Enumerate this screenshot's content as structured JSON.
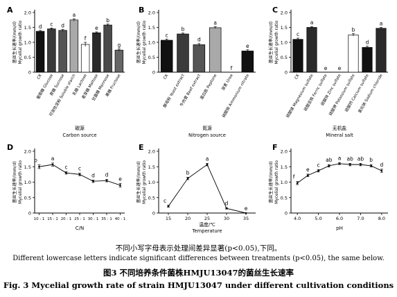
{
  "captions": {
    "note_cn": "不同小写字母表示处理间差异显著(p<0.05),下同。",
    "note_en": "Different lowercase letters indicate significant differences between treatments (p<0.05), the same below.",
    "title_cn": "图3 不同培养条件菌株HMJU13047的菌丝生长速率",
    "title_en": "Fig. 3 Mycelial growth rate of strain HMJU13047 under different cultivation conditions"
  },
  "chart_data": [
    {
      "panel": "A",
      "type": "bar",
      "ylabel_cn": "菌丝生长速率/(mm/d)",
      "ylabel_en": "Mycelial growth ratio",
      "xlabel_cn": "碳源",
      "xlabel_en": "Carbon source",
      "ylim": [
        0,
        2.0
      ],
      "yticks": [
        "0",
        "0.5",
        "1.0",
        "1.5",
        "2.0"
      ],
      "categories": [
        "CK",
        "葡萄糖 Glucose",
        "蔗糖 Sucrose",
        "可溶性淀粉 Soluble starch",
        "乳糖 Lactose",
        "麦芽糖 Maltose",
        "甘露糖 Mannose",
        "果糖 Fructose"
      ],
      "values": [
        1.37,
        1.45,
        1.4,
        1.75,
        0.93,
        1.32,
        1.58,
        0.74
      ],
      "errors": [
        0.03,
        0.03,
        0.03,
        0.04,
        0.07,
        0.03,
        0.03,
        0.04
      ],
      "letters": [
        "d",
        "c",
        "d",
        "a",
        "f",
        "e",
        "b",
        "g"
      ],
      "colors": [
        "#111111",
        "#3a3a3a",
        "#555555",
        "#a9a9a9",
        "#ffffff",
        "#2a2a2a",
        "#4a4a4a",
        "#666666"
      ]
    },
    {
      "panel": "B",
      "type": "bar",
      "ylabel_cn": "菌丝生长速率/(mm/d)",
      "ylabel_en": "Mycelial growth ratio",
      "xlabel_cn": "氮源",
      "xlabel_en": "Nitrogen source",
      "ylim": [
        0,
        2.0
      ],
      "yticks": [
        "0",
        "0.5",
        "1.0",
        "1.5",
        "2.0"
      ],
      "categories": [
        "CK",
        "酵母粉 Yeast extract",
        "牛肉膏 Beef extract",
        "蛋白胨 Peptone",
        "尿素 Urea",
        "硝酸铵 Ammonium nitrate"
      ],
      "values": [
        1.07,
        1.28,
        0.92,
        1.49,
        0.0,
        0.71
      ],
      "errors": [
        0.04,
        0.03,
        0.04,
        0.03,
        0.0,
        0.04
      ],
      "letters": [
        "c",
        "b",
        "d",
        "a",
        "f",
        "e"
      ],
      "colors": [
        "#111111",
        "#3a3a3a",
        "#555555",
        "#a9a9a9",
        "#ffffff",
        "#111111"
      ]
    },
    {
      "panel": "C",
      "type": "bar",
      "ylabel_cn": "菌丝生长速率/(mm/d)",
      "ylabel_en": "Mycelial growth ratio",
      "xlabel_cn": "无机盐",
      "xlabel_en": "Mineral salt",
      "ylim": [
        0,
        2.0
      ],
      "yticks": [
        "0",
        "0.5",
        "1.0",
        "1.5",
        "2.0"
      ],
      "categories": [
        "CK",
        "硫酸镁 Magnesium sulfate",
        "硫酸亚铁 Ferric sulfate",
        "硫酸锌 Zinc sulfate",
        "硫酸钾 Potassium sulfate",
        "硫酸钙 Calcium sulfate",
        "氯化钠 Sodium chloride"
      ],
      "values": [
        1.1,
        1.5,
        0.0,
        0.0,
        1.25,
        0.83,
        1.47
      ],
      "errors": [
        0.04,
        0.03,
        0.0,
        0.0,
        0.04,
        0.04,
        0.03
      ],
      "letters": [
        "c",
        "a",
        "e",
        "e",
        "b",
        "d",
        "a"
      ],
      "colors": [
        "#111111",
        "#2a2a2a",
        "#ffffff",
        "#ffffff",
        "#ffffff",
        "#111111",
        "#2a2a2a"
      ]
    },
    {
      "panel": "D",
      "type": "line",
      "ylabel_cn": "菌丝生长速率/(mm/d)",
      "ylabel_en": "Mycelial growth ratio",
      "xlabel": "C/N",
      "ylim": [
        0,
        2.0
      ],
      "yticks": [
        "0",
        "0.5",
        "1.0",
        "1.5",
        "2.0"
      ],
      "categories": [
        "10 : 1",
        "15 : 1",
        "20 : 1",
        "25 : 1",
        "30 : 1",
        "35 : 1",
        "40 : 1"
      ],
      "values": [
        1.5,
        1.57,
        1.3,
        1.25,
        1.03,
        1.05,
        0.9
      ],
      "errors": [
        0.06,
        0.05,
        0.04,
        0.04,
        0.04,
        0.04,
        0.06
      ],
      "letters": [
        "b",
        "a",
        "c",
        "c",
        "d",
        "d",
        "e"
      ]
    },
    {
      "panel": "E",
      "type": "line",
      "ylabel_cn": "菌丝生长速率/(mm/d)",
      "ylabel_en": "Mycelial growth ratio",
      "xlabel_cn": "温度/℃",
      "xlabel_en": "Temperature",
      "ylim": [
        0,
        2.0
      ],
      "yticks": [
        "0",
        "0.5",
        "1.0",
        "1.5",
        "2.0"
      ],
      "x": [
        15,
        20,
        25,
        30,
        35
      ],
      "xlim": [
        12.5,
        37.5
      ],
      "xticks": [
        "15",
        "20",
        "25",
        "30",
        "35"
      ],
      "values": [
        0.22,
        1.12,
        1.57,
        0.15,
        0.0
      ],
      "errors": [
        0.03,
        0.04,
        0.04,
        0.02,
        0.0
      ],
      "letters": [
        "c",
        "b",
        "a",
        "d",
        "e"
      ]
    },
    {
      "panel": "F",
      "type": "line",
      "ylabel_cn": "菌丝生长速率/(mm/d)",
      "ylabel_en": "Mycelial growth ratio",
      "xlabel": "pH",
      "ylim": [
        0,
        2.0
      ],
      "yticks": [
        "0",
        "0.5",
        "1.0",
        "1.5",
        "2.0"
      ],
      "x": [
        4.0,
        4.5,
        5.0,
        5.5,
        6.0,
        6.5,
        7.0,
        7.5,
        8.0
      ],
      "xlim": [
        3.7,
        8.3
      ],
      "xticks": [
        "4.0",
        "5.0",
        "6.0",
        "7.0",
        "8.0"
      ],
      "values": [
        0.97,
        1.22,
        1.37,
        1.53,
        1.6,
        1.57,
        1.57,
        1.53,
        1.37
      ],
      "errors": [
        0.05,
        0.04,
        0.04,
        0.04,
        0.03,
        0.04,
        0.04,
        0.04,
        0.05
      ],
      "letters": [
        "f",
        "e",
        "c",
        "ab",
        "a",
        "ab",
        "ab",
        "b",
        "d"
      ]
    }
  ]
}
